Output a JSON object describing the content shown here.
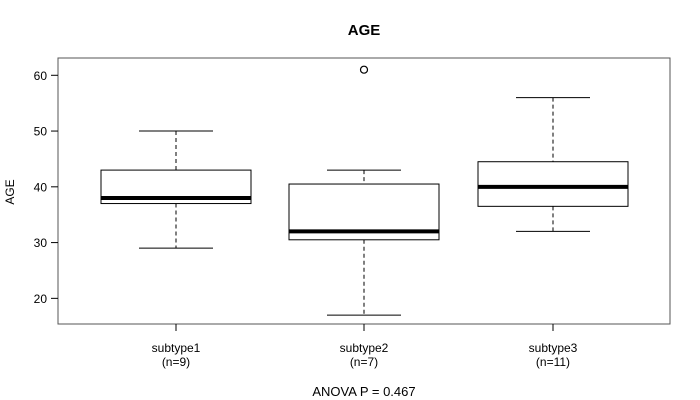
{
  "title": "AGE",
  "y_axis_label": "AGE",
  "annotation": "ANOVA P = 0.467",
  "colors": {
    "line": "#000000",
    "box_fill": "#ffffff",
    "frame": "#555555",
    "background": "#ffffff"
  },
  "chart_data": {
    "type": "boxplot",
    "title": "AGE",
    "xlabel": "",
    "ylabel": "AGE",
    "yticks": [
      20,
      30,
      40,
      50,
      60
    ],
    "ylim": [
      15.4,
      63.1
    ],
    "grid": false,
    "legend": "none",
    "annotation": "ANOVA P = 0.467",
    "groups": [
      {
        "label": "subtype1",
        "sublabel": "(n=9)",
        "n": 9,
        "low": 29,
        "q1": 37,
        "median": 38,
        "q3": 43,
        "high": 50,
        "outliers": []
      },
      {
        "label": "subtype2",
        "sublabel": "(n=7)",
        "n": 7,
        "low": 17,
        "q1": 30.5,
        "median": 32,
        "q3": 40.5,
        "high": 43,
        "outliers": [
          61
        ]
      },
      {
        "label": "subtype3",
        "sublabel": "(n=11)",
        "n": 11,
        "low": 32,
        "q1": 36.5,
        "median": 40,
        "q3": 44.5,
        "high": 56,
        "outliers": []
      }
    ]
  }
}
